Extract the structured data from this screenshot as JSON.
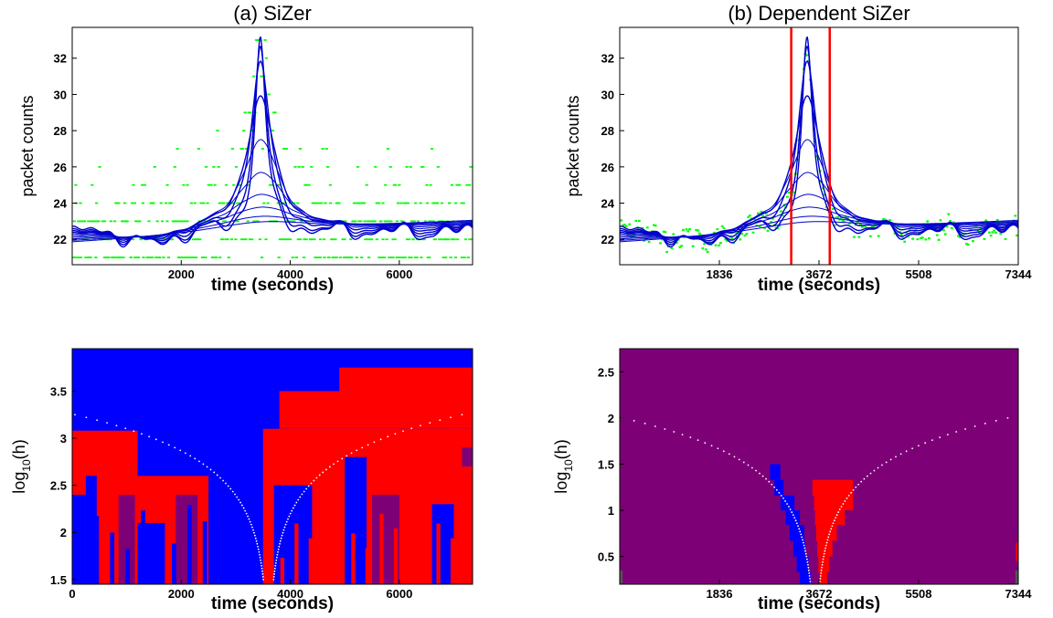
{
  "chart_data": [
    {
      "id": "a_top",
      "type": "line",
      "title": "(a) SiZer",
      "xlabel": "time (seconds)",
      "ylabel": "packet counts",
      "xlim": [
        0,
        7344
      ],
      "ylim": [
        20.6,
        33.7
      ],
      "xticks": [
        2000,
        4000,
        6000
      ],
      "yticks": [
        22,
        24,
        26,
        28,
        30,
        32
      ],
      "scatter_color": "#00ff00",
      "curve_color": "#0000cc",
      "scatter": {
        "name": "",
        "style": "quantized",
        "levels": [
          21,
          22,
          23,
          24,
          25,
          26,
          27,
          28,
          29,
          30,
          31,
          32,
          33
        ]
      },
      "bandwidths_log10": [
        1.5,
        1.75,
        2.0,
        2.25,
        2.5,
        2.75,
        3.0,
        3.25,
        3.5,
        3.75
      ],
      "peak_time": 3450,
      "peak_heights": [
        33.1,
        32.6,
        31.8,
        29.9,
        27.5,
        25.7,
        24.5,
        23.8,
        23.3,
        23.0
      ],
      "baseline_level": 22.4,
      "grid": false
    },
    {
      "id": "b_top",
      "type": "line",
      "title": "(b) Dependent SiZer",
      "xlabel": "time (seconds)",
      "ylabel": "packet counts",
      "xlim": [
        0,
        7344
      ],
      "ylim": [
        20.6,
        33.7
      ],
      "xticks": [
        1836,
        3672,
        5508,
        7344
      ],
      "yticks": [
        22,
        24,
        26,
        28,
        30,
        32
      ],
      "scatter_color": "#00ff00",
      "curve_color": "#0000cc",
      "scatter": {
        "name": "",
        "style": "continuous"
      },
      "vlines": [
        3160,
        3870
      ],
      "vline_color": "#ff0000",
      "bandwidths_log10": [
        0.5,
        0.75,
        1.0,
        1.25,
        1.5,
        1.75,
        2.0,
        2.25,
        2.5,
        2.75
      ],
      "peak_time": 3450,
      "peak_heights": [
        33.1,
        32.6,
        31.8,
        29.9,
        27.5,
        25.7,
        24.5,
        23.8,
        23.3,
        23.0
      ],
      "baseline_level": 22.4,
      "grid": false
    },
    {
      "id": "a_map",
      "type": "heatmap",
      "xlabel": "time (seconds)",
      "ylabel": "log10(h)",
      "ylabel_parts": [
        "log",
        "10",
        "(h)"
      ],
      "xlim": [
        0,
        7344
      ],
      "ylim": [
        1.45,
        3.95
      ],
      "xticks": [
        0,
        2000,
        4000,
        6000
      ],
      "yticks": [
        1.5,
        2,
        2.5,
        3,
        3.5
      ],
      "colors": {
        "increasing": "#0000ff",
        "decreasing": "#ff0000",
        "not_significant": "#7d0077",
        "sparse": "#555555"
      },
      "regions": [
        {
          "x0": 0,
          "x1": 7344,
          "h0": 1.45,
          "h1": 3.95,
          "sig": "increasing"
        },
        {
          "x0": 0,
          "x1": 1200,
          "h0": 1.45,
          "h1": 3.08,
          "sig": "decreasing"
        },
        {
          "x0": 0,
          "x1": 250,
          "h0": 1.45,
          "h1": 2.4,
          "sig": "increasing"
        },
        {
          "x0": 250,
          "x1": 450,
          "h0": 1.45,
          "h1": 2.6,
          "sig": "increasing"
        },
        {
          "x0": 850,
          "x1": 1150,
          "h0": 1.45,
          "h1": 2.4,
          "sig": "not_significant"
        },
        {
          "x0": 1200,
          "x1": 2500,
          "h0": 1.45,
          "h1": 2.6,
          "sig": "decreasing"
        },
        {
          "x0": 1200,
          "x1": 1700,
          "h0": 1.45,
          "h1": 2.1,
          "sig": "increasing"
        },
        {
          "x0": 1900,
          "x1": 2300,
          "h0": 1.45,
          "h1": 2.4,
          "sig": "not_significant"
        },
        {
          "x0": 3500,
          "x1": 7344,
          "h0": 1.45,
          "h1": 3.1,
          "sig": "decreasing"
        },
        {
          "x0": 3800,
          "x1": 7344,
          "h0": 3.1,
          "h1": 3.5,
          "sig": "decreasing"
        },
        {
          "x0": 4900,
          "x1": 7344,
          "h0": 3.5,
          "h1": 3.75,
          "sig": "decreasing"
        },
        {
          "x0": 3700,
          "x1": 4400,
          "h0": 1.45,
          "h1": 2.5,
          "sig": "increasing"
        },
        {
          "x0": 5000,
          "x1": 5400,
          "h0": 1.45,
          "h1": 2.8,
          "sig": "increasing"
        },
        {
          "x0": 6600,
          "x1": 7000,
          "h0": 1.45,
          "h1": 2.3,
          "sig": "increasing"
        },
        {
          "x0": 5500,
          "x1": 6000,
          "h0": 1.45,
          "h1": 2.4,
          "sig": "not_significant"
        },
        {
          "x0": 7150,
          "x1": 7344,
          "h0": 2.7,
          "h1": 2.9,
          "sig": "not_significant"
        }
      ],
      "stripe_regions": [
        {
          "x0": 0,
          "x1": 3400,
          "h0": 1.45,
          "h1": 2.35,
          "sig": "increasing",
          "count": 12
        },
        {
          "x0": 3700,
          "x1": 7344,
          "h0": 1.45,
          "h1": 2.25,
          "sig": "decreasing",
          "count": 14
        }
      ],
      "dotted_curve": {
        "color": "#ffffff",
        "center": 3600,
        "half_width": 3550,
        "h_bottom": 1.5,
        "h_top": 3.25
      }
    },
    {
      "id": "b_map",
      "type": "heatmap",
      "xlabel": "time (seconds)",
      "ylabel": "log10(h)",
      "ylabel_parts": [
        "log",
        "10",
        "(h)"
      ],
      "xlim": [
        0,
        7344
      ],
      "ylim": [
        0.2,
        2.75
      ],
      "xticks": [
        1836,
        3672,
        5508,
        7344
      ],
      "yticks": [
        0.5,
        1,
        1.5,
        2,
        2.5
      ],
      "colors": {
        "increasing": "#0000ff",
        "decreasing": "#ff0000",
        "not_significant": "#7d0077",
        "sparse": "#555555"
      },
      "regions": [
        {
          "x0": 0,
          "x1": 7344,
          "h0": 0.2,
          "h1": 2.75,
          "sig": "not_significant"
        },
        {
          "x0": 2770,
          "x1": 2960,
          "h0": 1.33,
          "h1": 1.5,
          "sig": "increasing"
        },
        {
          "x0": 2850,
          "x1": 3120,
          "h0": 1.16,
          "h1": 1.33,
          "sig": "increasing"
        },
        {
          "x0": 2960,
          "x1": 3220,
          "h0": 1.0,
          "h1": 1.16,
          "sig": "increasing"
        },
        {
          "x0": 3060,
          "x1": 3320,
          "h0": 0.84,
          "h1": 1.0,
          "sig": "increasing"
        },
        {
          "x0": 3130,
          "x1": 3400,
          "h0": 0.67,
          "h1": 0.84,
          "sig": "increasing"
        },
        {
          "x0": 3200,
          "x1": 3420,
          "h0": 0.5,
          "h1": 0.67,
          "sig": "increasing"
        },
        {
          "x0": 3260,
          "x1": 3480,
          "h0": 0.33,
          "h1": 0.5,
          "sig": "increasing"
        },
        {
          "x0": 3320,
          "x1": 3520,
          "h0": 0.2,
          "h1": 0.33,
          "sig": "increasing"
        },
        {
          "x0": 3550,
          "x1": 4300,
          "h0": 1.16,
          "h1": 1.33,
          "sig": "decreasing"
        },
        {
          "x0": 3580,
          "x1": 4300,
          "h0": 1.0,
          "h1": 1.16,
          "sig": "decreasing"
        },
        {
          "x0": 3600,
          "x1": 4150,
          "h0": 0.84,
          "h1": 1.0,
          "sig": "decreasing"
        },
        {
          "x0": 3620,
          "x1": 4000,
          "h0": 0.67,
          "h1": 0.84,
          "sig": "decreasing"
        },
        {
          "x0": 3640,
          "x1": 3920,
          "h0": 0.5,
          "h1": 0.67,
          "sig": "decreasing"
        },
        {
          "x0": 3660,
          "x1": 3860,
          "h0": 0.33,
          "h1": 0.5,
          "sig": "decreasing"
        },
        {
          "x0": 3680,
          "x1": 3820,
          "h0": 0.2,
          "h1": 0.33,
          "sig": "decreasing"
        },
        {
          "x0": 3020,
          "x1": 3200,
          "h0": 1.16,
          "h1": 1.33,
          "sig": "not_significant"
        },
        {
          "x0": 0,
          "x1": 50,
          "h0": 0.2,
          "h1": 0.35,
          "sig": "sparse"
        },
        {
          "x0": 7290,
          "x1": 7344,
          "h0": 0.2,
          "h1": 0.35,
          "sig": "sparse"
        },
        {
          "x0": 7300,
          "x1": 7344,
          "h0": 0.45,
          "h1": 0.65,
          "sig": "decreasing"
        }
      ],
      "dotted_curve": {
        "color": "#ffffff",
        "center": 3600,
        "half_width": 3550,
        "h_bottom": 0.2,
        "h_top": 2.0
      }
    }
  ]
}
